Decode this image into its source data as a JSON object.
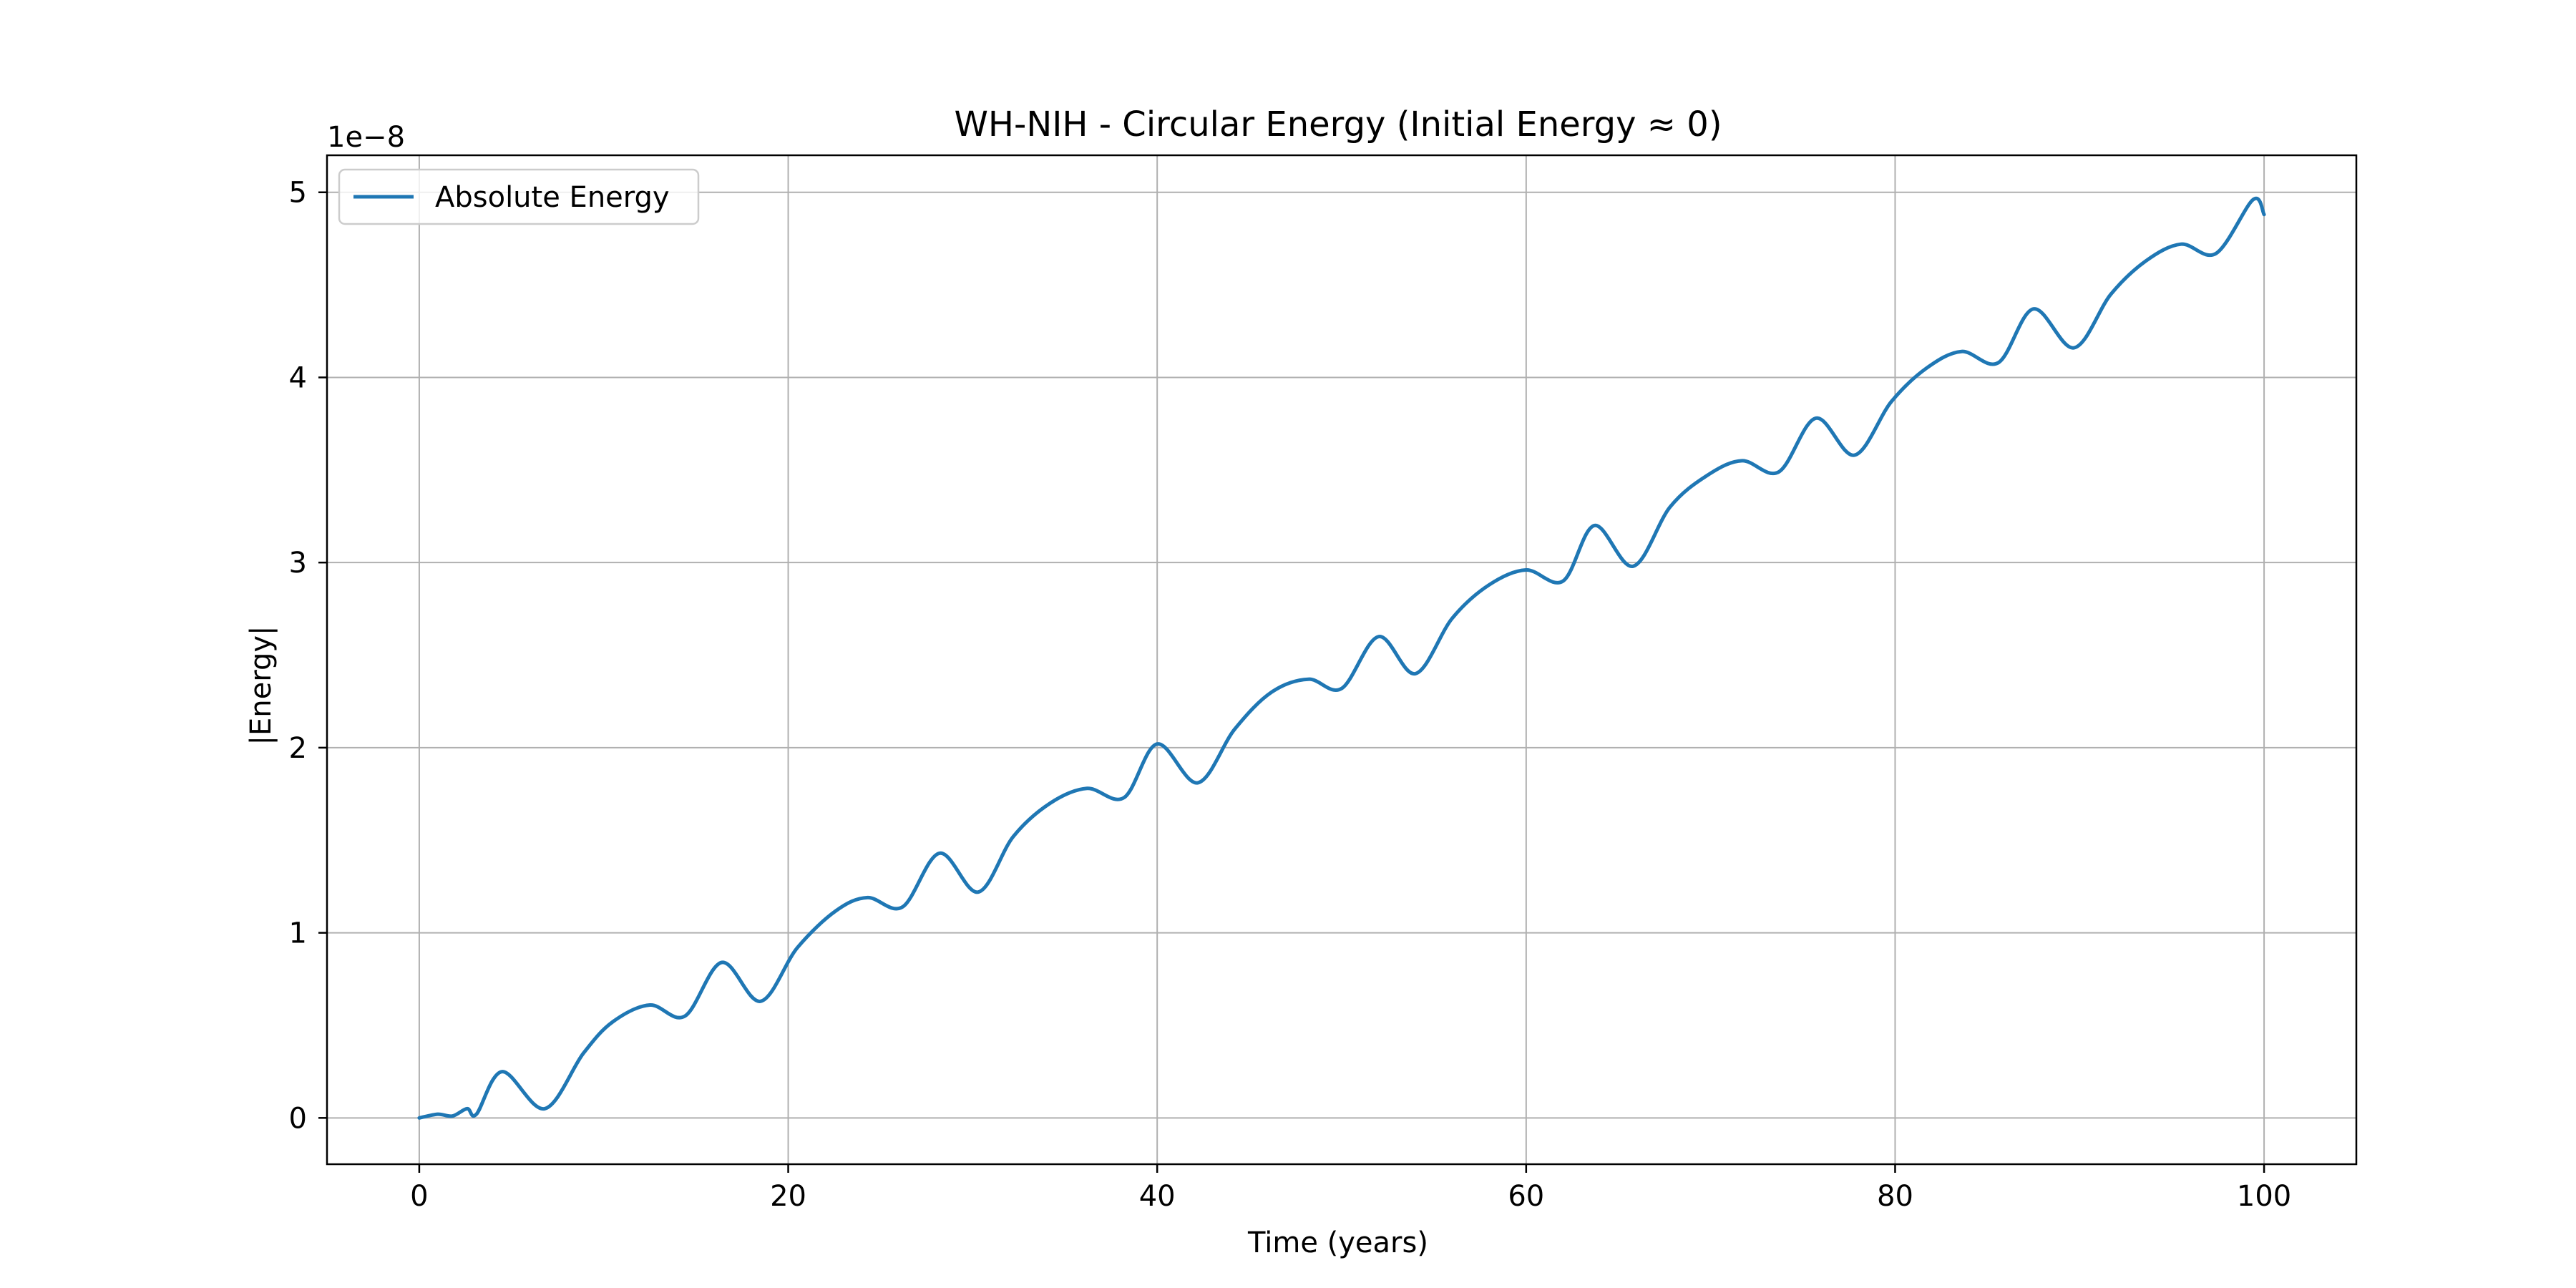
{
  "chart_data": {
    "type": "line",
    "title": "WH-NIH - Circular Energy (Initial Energy ≈ 0)",
    "xlabel": "Time (years)",
    "ylabel": "|Energy|",
    "y_scale_label": "1e−8",
    "xlim": [
      -5,
      105
    ],
    "ylim": [
      -0.25,
      5.2
    ],
    "x_ticks": [
      0,
      20,
      40,
      60,
      80,
      100
    ],
    "x_tick_labels": [
      "0",
      "20",
      "40",
      "60",
      "80",
      "100"
    ],
    "y_ticks": [
      0,
      1,
      2,
      3,
      4,
      5
    ],
    "y_tick_labels": [
      "0",
      "1",
      "2",
      "3",
      "4",
      "5"
    ],
    "grid": true,
    "legend_position": "top-left",
    "colors": {
      "series": "#1f77b4",
      "grid": "#b0b0b0",
      "axes": "#000000"
    },
    "series": [
      {
        "name": "Absolute Energy",
        "x": [
          0,
          1,
          1.8,
          2.6,
          3.1,
          4.5,
          6.8,
          8.9,
          10.5,
          12.5,
          14.4,
          16.4,
          18.5,
          20.5,
          22.6,
          24.3,
          26.2,
          28.2,
          30.3,
          32.2,
          34.2,
          36.2,
          38.2,
          40,
          42.2,
          44.2,
          46.2,
          48.2,
          50,
          52,
          54,
          56,
          58,
          60,
          62,
          63.7,
          65.8,
          67.8,
          69.8,
          71.7,
          73.7,
          75.7,
          77.8,
          79.8,
          81.7,
          83.6,
          85.6,
          87.5,
          89.7,
          91.7,
          93.6,
          95.5,
          97.4,
          99.4,
          100
        ],
        "values": [
          0.0,
          0.02,
          0.01,
          0.05,
          0.02,
          0.25,
          0.05,
          0.35,
          0.52,
          0.61,
          0.55,
          0.84,
          0.63,
          0.92,
          1.12,
          1.19,
          1.14,
          1.43,
          1.22,
          1.52,
          1.7,
          1.78,
          1.73,
          2.02,
          1.81,
          2.1,
          2.3,
          2.37,
          2.32,
          2.6,
          2.4,
          2.7,
          2.88,
          2.96,
          2.9,
          3.2,
          2.98,
          3.3,
          3.47,
          3.55,
          3.49,
          3.78,
          3.58,
          3.87,
          4.05,
          4.14,
          4.08,
          4.37,
          4.16,
          4.45,
          4.63,
          4.72,
          4.67,
          4.96,
          4.88
        ]
      }
    ]
  }
}
